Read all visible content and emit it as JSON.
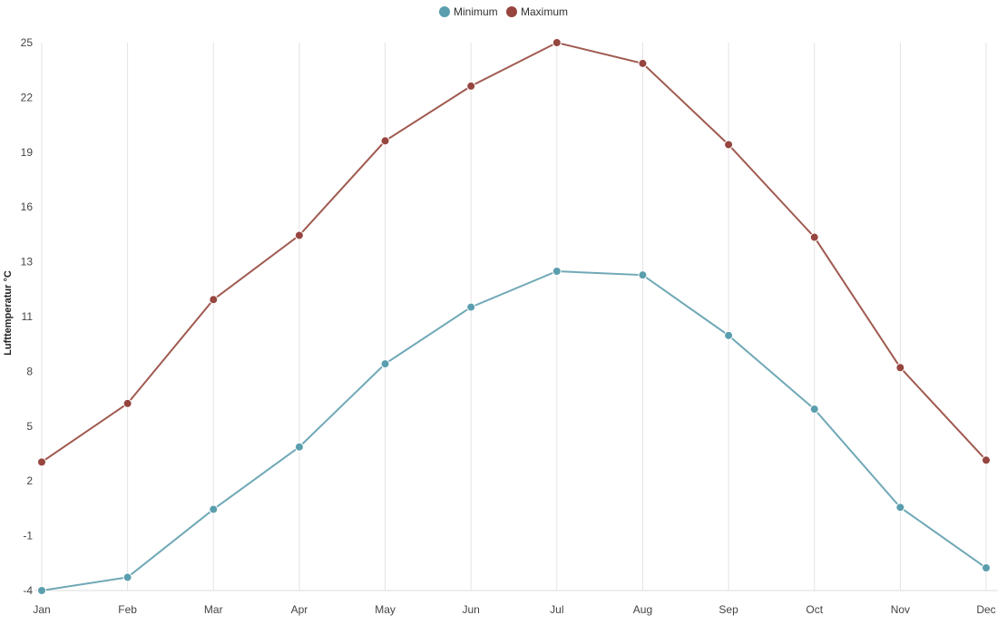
{
  "chart_data": {
    "type": "line",
    "categories": [
      "Jan",
      "Feb",
      "Mar",
      "Apr",
      "May",
      "Jun",
      "Jul",
      "Aug",
      "Sep",
      "Oct",
      "Nov",
      "Dec"
    ],
    "ylabel": "Lufttemperatur °C",
    "ylim": [
      -4,
      25
    ],
    "yticks": [
      "-4",
      "-1",
      "2",
      "5",
      "8",
      "11",
      "13",
      "16",
      "19",
      "22",
      "25"
    ],
    "grid": "vertical",
    "legend_position": "top-center",
    "series": [
      {
        "name": "Minimum",
        "color": "#6fa8b6",
        "marker_color": "#5b9eae",
        "values": [
          -4.0,
          -3.3,
          0.3,
          3.6,
          8.0,
          11.0,
          12.9,
          12.7,
          9.5,
          5.6,
          0.4,
          -2.8
        ]
      },
      {
        "name": "Maximum",
        "color": "#a05a50",
        "marker_color": "#96463f",
        "values": [
          2.8,
          5.9,
          11.4,
          14.8,
          19.8,
          22.7,
          25.0,
          23.9,
          19.6,
          14.7,
          7.8,
          2.9
        ]
      }
    ]
  }
}
